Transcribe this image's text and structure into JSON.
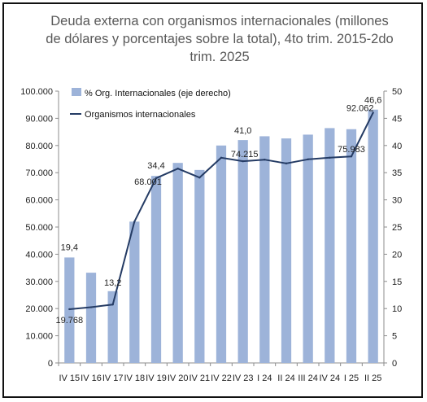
{
  "chart_data": {
    "type": "bar",
    "title_lines": [
      "Deuda externa con organismos internacionales (millones",
      "de dólares y porcentajes sobre la total), 4to trim. 2015-2do",
      "trim. 2025"
    ],
    "categories": [
      "IV 15",
      "IV 16",
      "IV 17",
      "IV 18",
      "IV 19",
      "IV 20",
      "IV 21",
      "IV 22",
      "IV 23",
      "I 24",
      "II 24",
      "III 24",
      "IV 24",
      "I 25",
      "II 25"
    ],
    "series": [
      {
        "name": "% Org. Internacionales (eje derecho)",
        "type": "bar",
        "axis": "right",
        "color": "#9db3d9",
        "values": [
          19.4,
          16.6,
          13.2,
          26.0,
          34.4,
          36.8,
          35.5,
          40.0,
          41.0,
          41.7,
          41.3,
          42.0,
          43.2,
          43.0,
          46.6
        ]
      },
      {
        "name": "Organismos internacionales",
        "type": "line",
        "axis": "left",
        "color": "#243b64",
        "values": [
          19768,
          20500,
          21500,
          52000,
          68001,
          71500,
          68200,
          75500,
          74215,
          74800,
          73400,
          74900,
          75500,
          75983,
          92062
        ]
      }
    ],
    "left_axis": {
      "ylim": [
        0,
        100000
      ],
      "ticks": [
        "0",
        "10.000",
        "20.000",
        "30.000",
        "40.000",
        "50.000",
        "60.000",
        "70.000",
        "80.000",
        "90.000",
        "100.000"
      ]
    },
    "right_axis": {
      "ylim": [
        0,
        50
      ],
      "ticks": [
        "0",
        "5",
        "10",
        "15",
        "20",
        "25",
        "30",
        "35",
        "40",
        "45",
        "50"
      ]
    },
    "data_labels": [
      {
        "text": "19,4",
        "series": 0,
        "index": 0
      },
      {
        "text": "13,2",
        "series": 0,
        "index": 2
      },
      {
        "text": "34,4",
        "series": 0,
        "index": 4
      },
      {
        "text": "41,0",
        "series": 0,
        "index": 8
      },
      {
        "text": "46,6",
        "series": 0,
        "index": 14
      },
      {
        "text": "19.768",
        "series": 1,
        "index": 0
      },
      {
        "text": "68.001",
        "series": 1,
        "index": 4
      },
      {
        "text": "74.215",
        "series": 1,
        "index": 8
      },
      {
        "text": "75.983",
        "series": 1,
        "index": 13
      },
      {
        "text": "92.062",
        "series": 1,
        "index": 14
      }
    ],
    "legend": [
      "% Org. Internacionales (eje derecho)",
      "Organismos internacionales"
    ],
    "legend_position": "top-left",
    "grid": false
  }
}
